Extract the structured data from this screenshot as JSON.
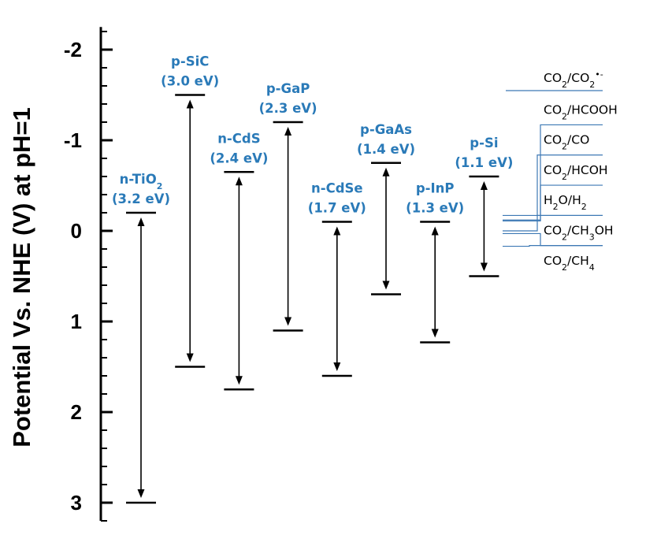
{
  "chart_data": {
    "type": "band-edge diagram",
    "ylabel": "Potential Vs. NHE (V) at pH=1",
    "ylim": [
      -2.25,
      3.2
    ],
    "y_inverted": true,
    "y_ticks": [
      {
        "value": -2,
        "label": "-2"
      },
      {
        "value": -1,
        "label": "-1"
      },
      {
        "value": 0,
        "label": "0"
      },
      {
        "value": 1,
        "label": "1"
      },
      {
        "value": 2,
        "label": "2"
      },
      {
        "value": 3,
        "label": "3"
      }
    ],
    "label_color": "#2a7ab8",
    "arrow_color": "#000000",
    "semiconductors": [
      {
        "name_parts": [
          [
            "n-TiO",
            ""
          ],
          [
            "2",
            "sub"
          ]
        ],
        "gap": "(3.2 eV)",
        "cb": -0.2,
        "vb": 3.0
      },
      {
        "name_parts": [
          [
            "p-SiC",
            ""
          ]
        ],
        "gap": "(3.0 eV)",
        "cb": -1.5,
        "vb": 1.5
      },
      {
        "name_parts": [
          [
            "n-CdS",
            ""
          ]
        ],
        "gap": "(2.4 eV)",
        "cb": -0.65,
        "vb": 1.75
      },
      {
        "name_parts": [
          [
            "p-GaP",
            ""
          ]
        ],
        "gap": "(2.3 eV)",
        "cb": -1.2,
        "vb": 1.1
      },
      {
        "name_parts": [
          [
            "n-CdSe",
            ""
          ]
        ],
        "gap": "(1.7 eV)",
        "cb": -0.1,
        "vb": 1.6
      },
      {
        "name_parts": [
          [
            "p-GaAs",
            ""
          ]
        ],
        "gap": "(1.4 eV)",
        "cb": -0.75,
        "vb": 0.7
      },
      {
        "name_parts": [
          [
            "p-InP",
            ""
          ]
        ],
        "gap": "(1.3 eV)",
        "cb": -0.1,
        "vb": 1.23
      },
      {
        "name_parts": [
          [
            "p-Si",
            ""
          ]
        ],
        "gap": "(1.1 eV)",
        "cb": -0.6,
        "vb": 0.5
      }
    ],
    "redox_line_color": "#3c78b4",
    "redox_couples": [
      {
        "label_parts": [
          [
            "CO",
            ""
          ],
          [
            "2",
            "sub"
          ],
          [
            "/CO",
            ""
          ],
          [
            "2",
            "sub"
          ],
          [
            "•-",
            "sup"
          ]
        ],
        "potential": -1.55
      },
      {
        "label_parts": [
          [
            "CO",
            ""
          ],
          [
            "2",
            "sub"
          ],
          [
            "/HCOOH",
            ""
          ]
        ],
        "potential": -0.12
      },
      {
        "label_parts": [
          [
            "CO",
            ""
          ],
          [
            "2",
            "sub"
          ],
          [
            "/CO",
            ""
          ]
        ],
        "potential": -0.17
      },
      {
        "label_parts": [
          [
            "CO",
            ""
          ],
          [
            "2",
            "sub"
          ],
          [
            "/HCOH",
            ""
          ]
        ],
        "potential": -0.11
      },
      {
        "label_parts": [
          [
            "H",
            ""
          ],
          [
            "2",
            "sub"
          ],
          [
            "O/H",
            ""
          ],
          [
            "2",
            "sub"
          ]
        ],
        "potential": 0.0
      },
      {
        "label_parts": [
          [
            "CO",
            ""
          ],
          [
            "2",
            "sub"
          ],
          [
            "/CH",
            ""
          ],
          [
            "3",
            "sub"
          ],
          [
            "OH",
            ""
          ]
        ],
        "potential": 0.03
      },
      {
        "label_parts": [
          [
            "CO",
            ""
          ],
          [
            "2",
            "sub"
          ],
          [
            "/CH",
            ""
          ],
          [
            "4",
            "sub"
          ]
        ],
        "potential": 0.17
      }
    ]
  }
}
